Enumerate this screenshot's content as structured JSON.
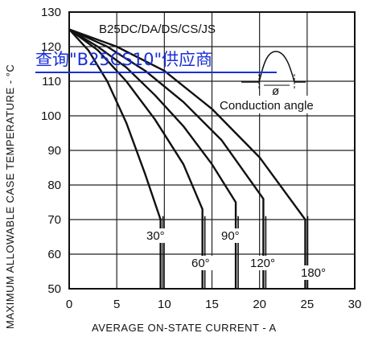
{
  "link": {
    "text": "查询\"B25CS10\"供应商",
    "color": "#1a2fd8"
  },
  "chart_data": {
    "type": "line",
    "title": "B25DC/DA/DS/CS/JS",
    "xlabel": "AVERAGE ON-STATE CURRENT - A",
    "ylabel": "MAXIMUM ALLOWABLE CASE TEMPERATURE - °C",
    "xlim": [
      0,
      30
    ],
    "ylim": [
      50,
      130
    ],
    "x_ticks": [
      "0",
      "5",
      "10",
      "15",
      "20",
      "25",
      "30"
    ],
    "y_ticks": [
      "50",
      "60",
      "70",
      "80",
      "90",
      "100",
      "110",
      "120",
      "130"
    ],
    "grid": true,
    "series": [
      {
        "name": "30°",
        "x": [
          0,
          2,
          4,
          6,
          8,
          9.6,
          9.6
        ],
        "y": [
          125,
          119,
          110,
          98,
          83,
          70,
          50
        ]
      },
      {
        "name": "60°",
        "x": [
          0,
          3,
          6,
          9,
          12,
          14,
          14
        ],
        "y": [
          125,
          119,
          110,
          99,
          86,
          73,
          50
        ]
      },
      {
        "name": "90°",
        "x": [
          0,
          3,
          6,
          9,
          12,
          15,
          17.5,
          17.5
        ],
        "y": [
          125,
          120,
          114,
          106,
          97,
          86,
          75,
          50
        ]
      },
      {
        "name": "120°",
        "x": [
          0,
          4,
          8,
          12,
          16,
          20.4,
          20.4
        ],
        "y": [
          125,
          120,
          113,
          104,
          93,
          76,
          50
        ]
      },
      {
        "name": "180°",
        "x": [
          0,
          5,
          10,
          15,
          20,
          24.8,
          24.8
        ],
        "y": [
          125,
          120,
          113,
          102,
          88,
          70,
          50
        ]
      }
    ],
    "annotations": {
      "inset_label": "Conduction angle",
      "inset_symbol": "ø"
    }
  }
}
